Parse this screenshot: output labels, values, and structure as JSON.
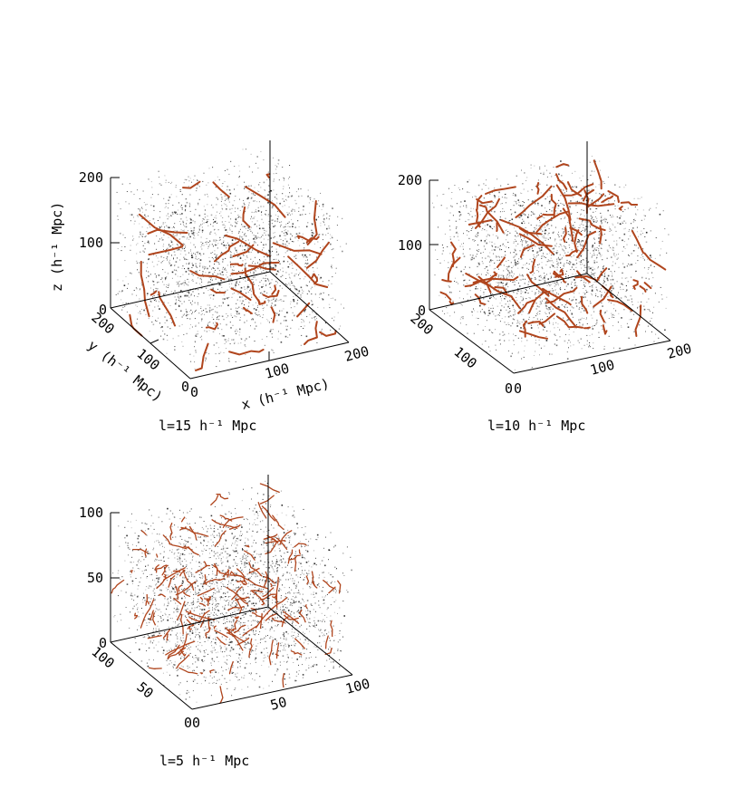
{
  "chart_data": [
    {
      "type": "scatter",
      "caption": "l=15 h⁻¹ Mpc",
      "xlabel": "x (h⁻¹ Mpc)",
      "ylabel": "y (h⁻¹ Mpc)",
      "zlabel": "z (h⁻¹ Mpc)",
      "xlim": [
        0,
        200
      ],
      "ylim": [
        0,
        200
      ],
      "zlim": [
        0,
        200
      ],
      "x_ticks": [
        "0",
        "100",
        "200"
      ],
      "y_ticks": [
        "0",
        "100",
        "200"
      ],
      "z_ticks": [
        "0",
        "100",
        "200"
      ],
      "series": [
        {
          "kind": "particles",
          "color": "#000000",
          "count": 2200
        },
        {
          "kind": "filaments",
          "color": "#b0451d",
          "count": 40
        }
      ]
    },
    {
      "type": "scatter",
      "caption": "l=10 h⁻¹ Mpc",
      "xlabel": "",
      "ylabel": "",
      "zlabel": "",
      "xlim": [
        0,
        200
      ],
      "ylim": [
        0,
        200
      ],
      "zlim": [
        0,
        200
      ],
      "x_ticks": [
        "0",
        "100",
        "200"
      ],
      "y_ticks": [
        "0",
        "100",
        "200"
      ],
      "z_ticks": [
        "0",
        "100",
        "200"
      ],
      "series": [
        {
          "kind": "particles",
          "color": "#000000",
          "count": 2200
        },
        {
          "kind": "filaments",
          "color": "#b0451d",
          "count": 85
        }
      ]
    },
    {
      "type": "scatter",
      "caption": "l=5 h⁻¹ Mpc",
      "xlabel": "",
      "ylabel": "",
      "zlabel": "",
      "xlim": [
        0,
        100
      ],
      "ylim": [
        0,
        100
      ],
      "zlim": [
        0,
        100
      ],
      "x_ticks": [
        "0",
        "50",
        "100"
      ],
      "y_ticks": [
        "0",
        "50",
        "100"
      ],
      "z_ticks": [
        "0",
        "50",
        "100"
      ],
      "series": [
        {
          "kind": "particles",
          "color": "#000000",
          "count": 2600
        },
        {
          "kind": "filaments",
          "color": "#b0451d",
          "count": 170
        }
      ]
    }
  ]
}
